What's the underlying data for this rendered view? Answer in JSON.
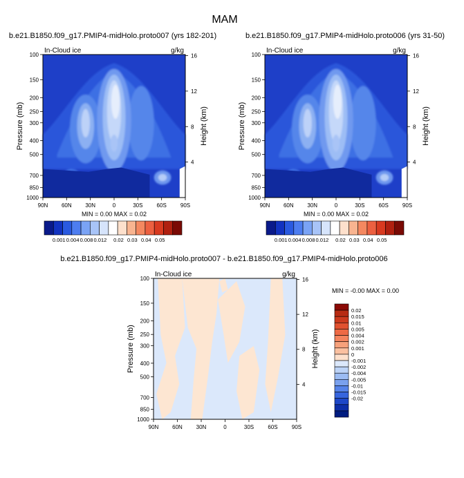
{
  "title": "MAM",
  "colors": {
    "positive": [
      "#fde0cc",
      "#fbc0a0",
      "#f7a17b",
      "#f4845e",
      "#ee6a45",
      "#e1512f",
      "#cc3a1d",
      "#b72b12",
      "#8b0a05"
    ],
    "negative": [
      "#ffffff",
      "#cfe1f8",
      "#a6c6f4",
      "#7ea9ef",
      "#5b8def",
      "#3a6ee6",
      "#1f51d1",
      "#0b36b0",
      "#001c80"
    ]
  },
  "chart_data": [
    {
      "type": "contour",
      "title": "b.e21.B1850.f09_g17.PMIP4-midHolo.proto007 (yrs 182-201)",
      "variable": "In-Cloud ice",
      "units": "g/kg",
      "ylabel": "Pressure (mb)",
      "ylabel_right": "Height (km)",
      "x_ticks": [
        "90N",
        "60N",
        "30N",
        "0",
        "30S",
        "60S",
        "90S"
      ],
      "y_ticks": [
        100,
        150,
        200,
        250,
        300,
        400,
        500,
        700,
        850,
        1000
      ],
      "y_right_ticks": [
        16,
        12,
        8,
        4
      ],
      "stats": {
        "min_label": "MIN =",
        "min": "0.00",
        "max_label": "MAX =",
        "max": "0.02"
      },
      "colorbar_labels": [
        "0.001",
        "0.004",
        "0.008",
        "0.012",
        "0.02",
        "0.03",
        "0.04",
        "0.05"
      ],
      "colorbar_colors": [
        "#0a1a8a",
        "#1233c0",
        "#2a5ae0",
        "#4d7df0",
        "#7aa3f5",
        "#a8c4f8",
        "#d6e4fb",
        "#ffffff",
        "#fde0cc",
        "#f8b490",
        "#f48860",
        "#ec6040",
        "#d83a20",
        "#b02010",
        "#7a0a05"
      ]
    },
    {
      "type": "contour",
      "title": "b.e21.B1850.f09_g17.PMIP4-midHolo.proto006 (yrs 31-50)",
      "variable": "In-Cloud ice",
      "units": "g/kg",
      "ylabel": "Pressure (mb)",
      "ylabel_right": "Height (km)",
      "x_ticks": [
        "90N",
        "60N",
        "30N",
        "0",
        "30S",
        "60S",
        "90S"
      ],
      "y_ticks": [
        100,
        150,
        200,
        250,
        300,
        400,
        500,
        700,
        850,
        1000
      ],
      "y_right_ticks": [
        16,
        12,
        8,
        4
      ],
      "stats": {
        "min_label": "MIN =",
        "min": "0.00",
        "max_label": "MAX =",
        "max": "0.02"
      },
      "colorbar_labels": [
        "0.001",
        "0.004",
        "0.008",
        "0.012",
        "0.02",
        "0.03",
        "0.04",
        "0.05"
      ],
      "colorbar_colors": [
        "#0a1a8a",
        "#1233c0",
        "#2a5ae0",
        "#4d7df0",
        "#7aa3f5",
        "#a8c4f8",
        "#d6e4fb",
        "#ffffff",
        "#fde0cc",
        "#f8b490",
        "#f48860",
        "#ec6040",
        "#d83a20",
        "#b02010",
        "#7a0a05"
      ]
    },
    {
      "type": "contour",
      "title": "b.e21.B1850.f09_g17.PMIP4-midHolo.proto007 - b.e21.B1850.f09_g17.PMIP4-midHolo.proto006",
      "variable": "In-Cloud ice",
      "units": "g/kg",
      "ylabel": "Pressure (mb)",
      "ylabel_right": "Height (km)",
      "x_ticks": [
        "90N",
        "60N",
        "30N",
        "0",
        "30S",
        "60S",
        "90S"
      ],
      "y_ticks": [
        100,
        150,
        200,
        250,
        300,
        400,
        500,
        700,
        850,
        1000
      ],
      "y_right_ticks": [
        16,
        12,
        8,
        4
      ],
      "stats": {
        "min_label": "MIN =",
        "min": "-0.00",
        "max_label": "MAX =",
        "max": "0.00"
      },
      "colorbar_labels": [
        "0.02",
        "0.015",
        "0.01",
        "0.005",
        "0.004",
        "0.002",
        "0.001",
        "0",
        "-0.001",
        "-0.002",
        "-0.004",
        "-0.005",
        "-0.01",
        "-0.015",
        "-0.02"
      ],
      "colorbar_colors": [
        "#8b0a05",
        "#b72b12",
        "#cc3a1d",
        "#e1512f",
        "#ee6a45",
        "#f4845e",
        "#f7a17b",
        "#fbc0a0",
        "#fde0cc",
        "#dbe8fb",
        "#bcd3f7",
        "#9cbcf3",
        "#7aa1ee",
        "#5683e9",
        "#3665de",
        "#1d47c8",
        "#0c2ea8",
        "#001c80"
      ]
    }
  ]
}
